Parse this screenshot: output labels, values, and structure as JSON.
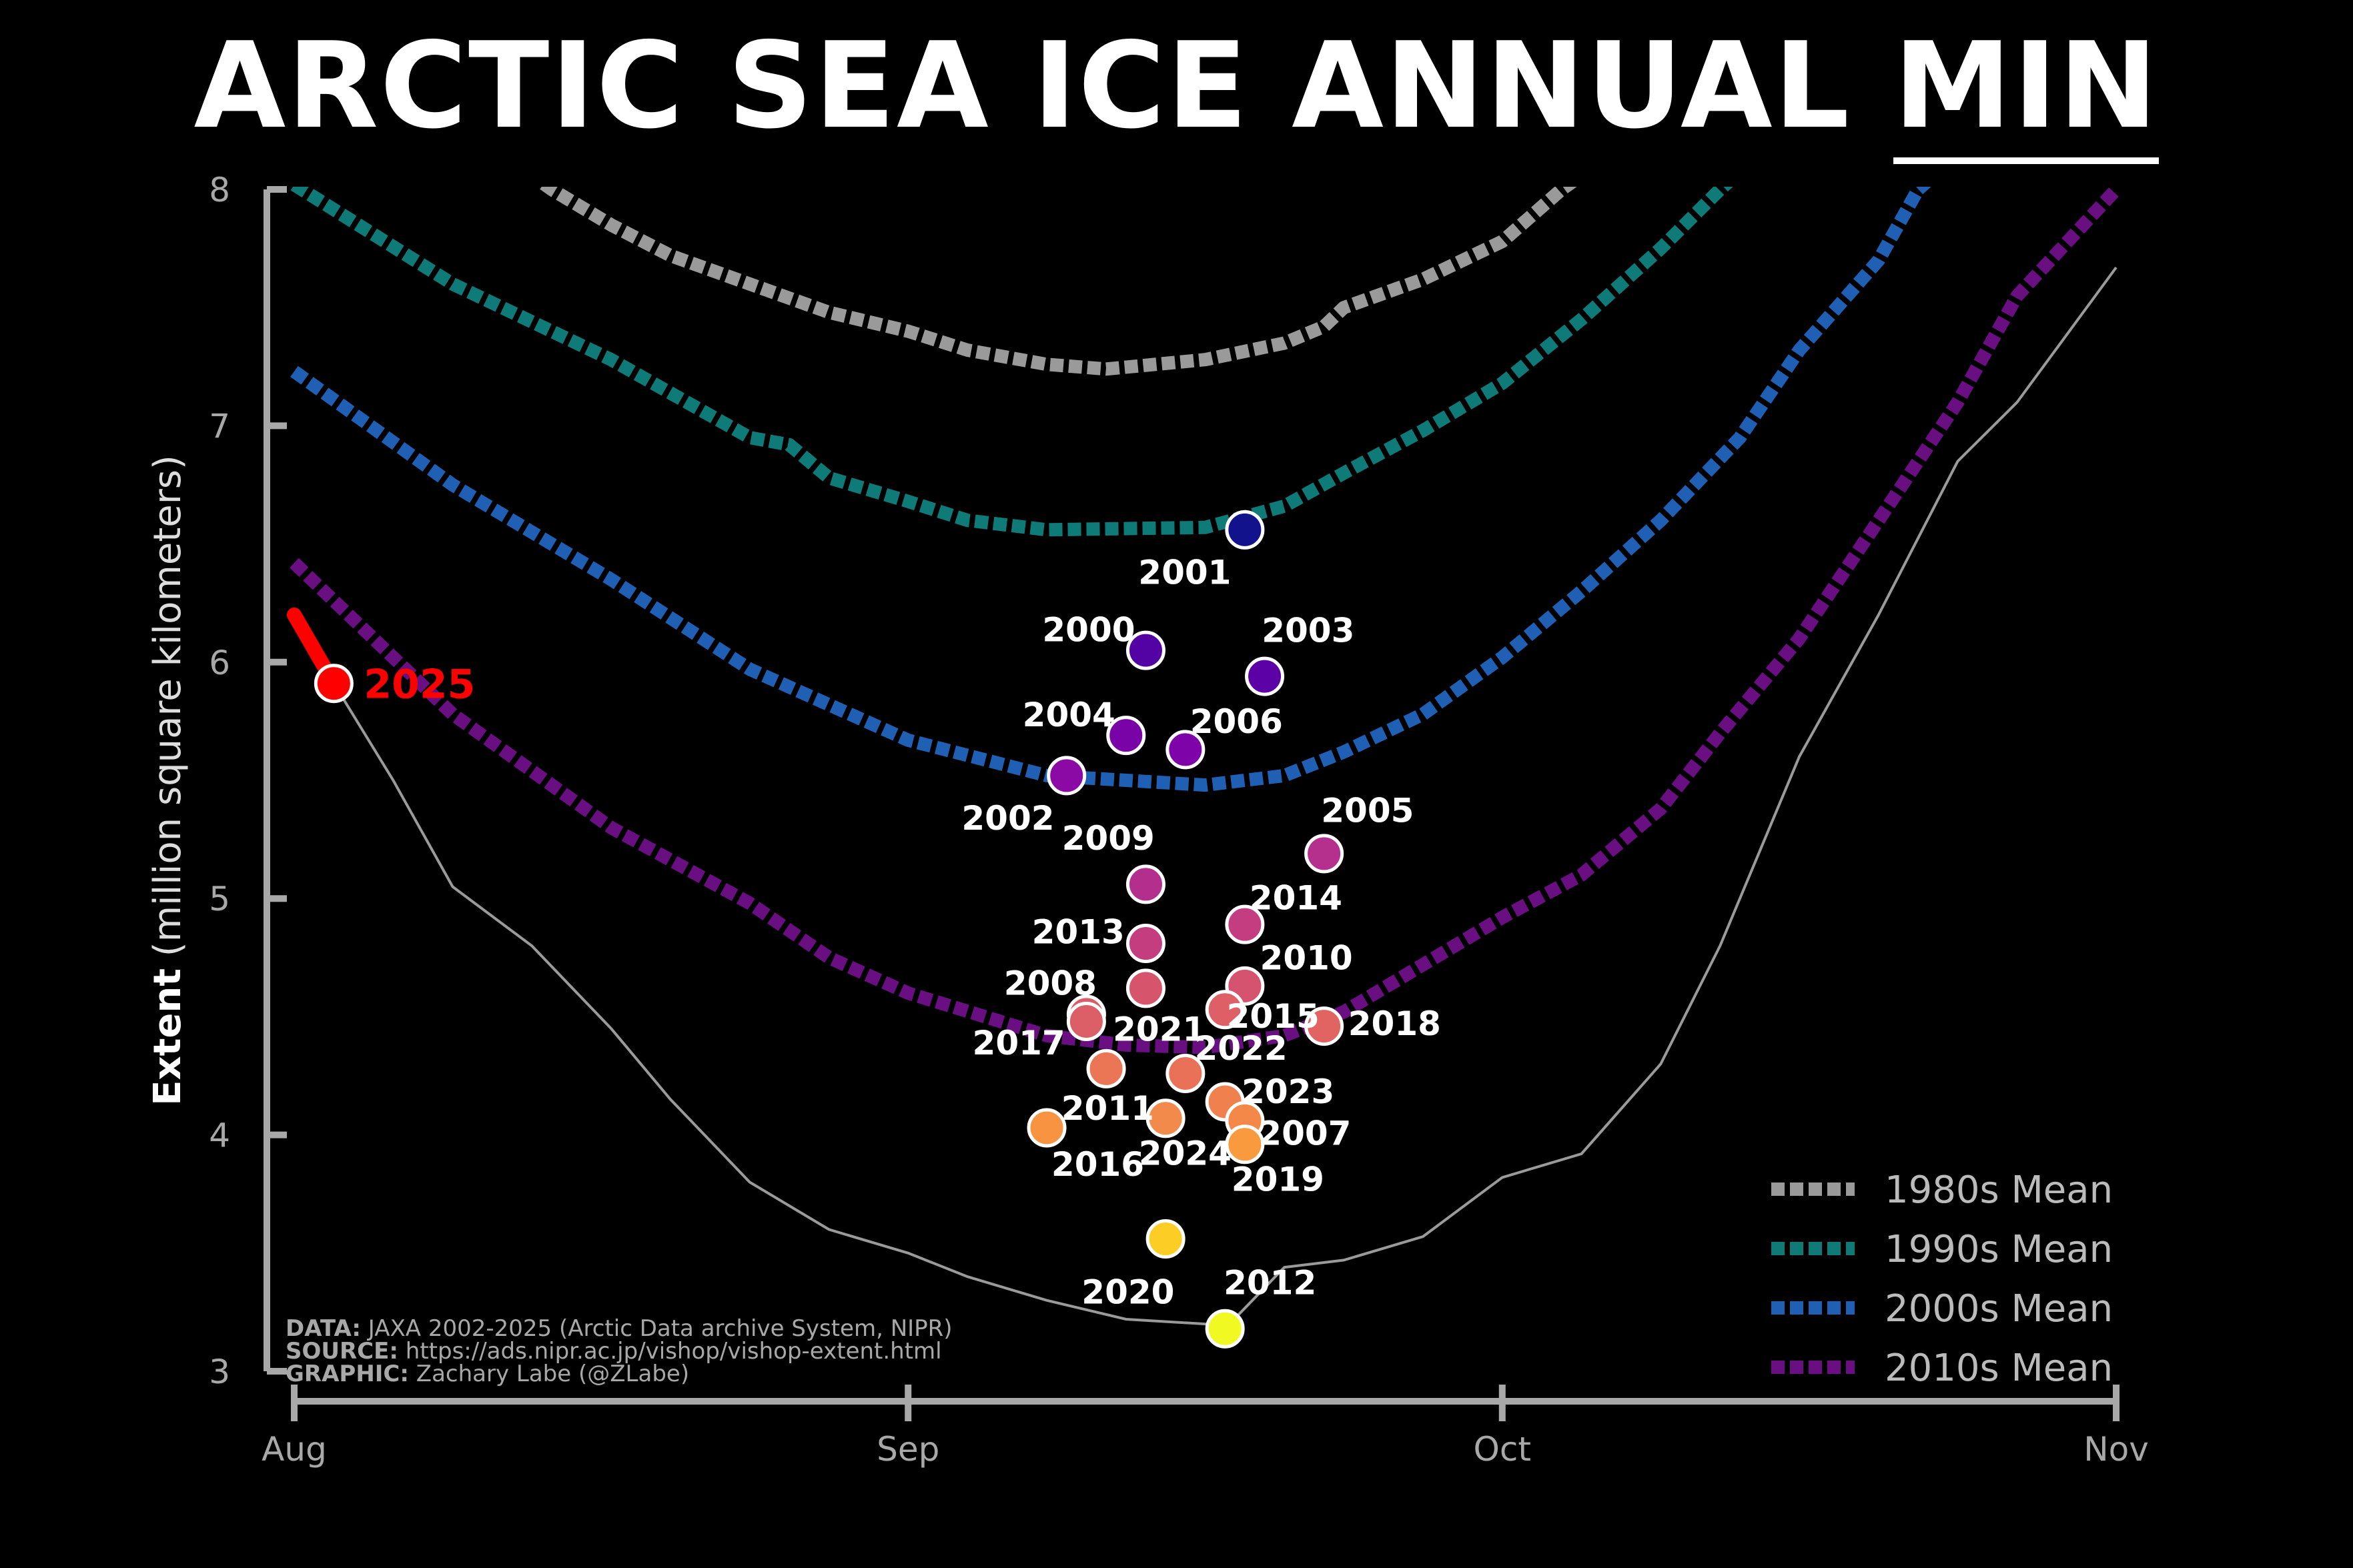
{
  "chart_data": {
    "type": "scatter",
    "title_main": "ARCTIC SEA ICE ANNUAL",
    "title_underlined": "MIN",
    "ylabel_bold": "Extent",
    "ylabel_rest": "(million square kilometers)",
    "ylim": [
      3,
      8
    ],
    "yticks": [
      "3",
      "4",
      "5",
      "6",
      "7",
      "8"
    ],
    "xlim": [
      "2025-08-01",
      "2025-11-01"
    ],
    "xticks": [
      {
        "date": "2025-08-01",
        "label": "Aug"
      },
      {
        "date": "2025-09-01",
        "label": "Sep"
      },
      {
        "date": "2025-10-01",
        "label": "Oct"
      },
      {
        "date": "2025-11-01",
        "label": "Nov"
      }
    ],
    "grid": false,
    "legend_position": "bottom-right",
    "mean_series": [
      {
        "name": "1980s Mean",
        "color": "#9a9a9a",
        "x": [
          "2025-08-09",
          "2025-08-14",
          "2025-08-17",
          "2025-08-20",
          "2025-08-24",
          "2025-08-28",
          "2025-09-01",
          "2025-09-04",
          "2025-09-08",
          "2025-09-11",
          "2025-09-16",
          "2025-09-20",
          "2025-09-22",
          "2025-09-23",
          "2025-09-27",
          "2025-10-01",
          "2025-10-04",
          "2025-10-09"
        ],
        "y": [
          8.3,
          8.0,
          7.85,
          7.72,
          7.6,
          7.48,
          7.4,
          7.32,
          7.26,
          7.24,
          7.28,
          7.35,
          7.42,
          7.5,
          7.62,
          7.78,
          8.0,
          8.3
        ]
      },
      {
        "name": "1990s Mean",
        "color": "#0f7b78",
        "x": [
          "2025-08-01",
          "2025-08-09",
          "2025-08-17",
          "2025-08-24",
          "2025-08-26",
          "2025-08-28",
          "2025-09-01",
          "2025-09-04",
          "2025-09-08",
          "2025-09-16",
          "2025-09-20",
          "2025-09-23",
          "2025-09-27",
          "2025-10-01",
          "2025-10-05",
          "2025-10-09",
          "2025-10-12",
          "2025-10-16"
        ],
        "y": [
          8.02,
          7.6,
          7.28,
          6.95,
          6.92,
          6.78,
          6.68,
          6.6,
          6.56,
          6.57,
          6.66,
          6.8,
          6.98,
          7.18,
          7.45,
          7.75,
          8.0,
          8.3
        ]
      },
      {
        "name": "2000s Mean",
        "color": "#1f5fb4",
        "x": [
          "2025-08-01",
          "2025-08-09",
          "2025-08-17",
          "2025-08-24",
          "2025-09-01",
          "2025-09-08",
          "2025-09-16",
          "2025-09-20",
          "2025-09-23",
          "2025-09-27",
          "2025-10-01",
          "2025-10-05",
          "2025-10-09",
          "2025-10-13",
          "2025-10-16",
          "2025-10-20",
          "2025-10-22",
          "2025-10-26"
        ],
        "y": [
          7.23,
          6.75,
          6.35,
          5.97,
          5.67,
          5.52,
          5.48,
          5.52,
          5.62,
          5.78,
          6.02,
          6.3,
          6.6,
          6.95,
          7.32,
          7.7,
          8.0,
          8.3
        ]
      },
      {
        "name": "2010s Mean",
        "color": "#6a0f82",
        "x": [
          "2025-08-01",
          "2025-08-05",
          "2025-08-09",
          "2025-08-17",
          "2025-08-24",
          "2025-08-28",
          "2025-09-01",
          "2025-09-08",
          "2025-09-12",
          "2025-09-16",
          "2025-09-20",
          "2025-09-23",
          "2025-09-27",
          "2025-10-01",
          "2025-10-05",
          "2025-10-09",
          "2025-10-12",
          "2025-10-16",
          "2025-10-20",
          "2025-10-24",
          "2025-10-27",
          "2025-11-01"
        ],
        "y": [
          6.42,
          6.1,
          5.78,
          5.3,
          4.98,
          4.75,
          4.6,
          4.42,
          4.38,
          4.37,
          4.42,
          4.52,
          4.72,
          4.92,
          5.1,
          5.38,
          5.7,
          6.1,
          6.6,
          7.1,
          7.55,
          8.0
        ]
      }
    ],
    "thin_line": {
      "color": "#9a9a9a",
      "x": [
        "2025-08-03",
        "2025-08-06",
        "2025-08-09",
        "2025-08-13",
        "2025-08-17",
        "2025-08-20",
        "2025-08-24",
        "2025-08-28",
        "2025-09-01",
        "2025-09-04",
        "2025-09-08",
        "2025-09-12",
        "2025-09-16",
        "2025-09-17",
        "2025-09-20",
        "2025-09-23",
        "2025-09-27",
        "2025-10-01",
        "2025-10-05",
        "2025-10-09",
        "2025-10-12",
        "2025-10-16",
        "2025-10-20",
        "2025-10-24",
        "2025-10-27",
        "2025-11-01"
      ],
      "y": [
        5.91,
        5.5,
        5.05,
        4.8,
        4.45,
        4.15,
        3.8,
        3.6,
        3.5,
        3.4,
        3.3,
        3.22,
        3.2,
        3.18,
        3.44,
        3.47,
        3.57,
        3.82,
        3.92,
        4.3,
        4.8,
        5.6,
        6.2,
        6.85,
        7.1,
        7.67
      ]
    },
    "current_line": {
      "color": "#ff0000",
      "x": [
        "2025-08-01",
        "2025-08-03"
      ],
      "y": [
        6.2,
        5.91
      ]
    },
    "points": [
      {
        "label": "2001",
        "date": "2025-09-18",
        "value": 6.56,
        "color": "#12128c"
      },
      {
        "label": "2000",
        "date": "2025-09-13",
        "value": 6.05,
        "color": "#5302a3"
      },
      {
        "label": "2003",
        "date": "2025-09-19",
        "value": 5.94,
        "color": "#5b01a5"
      },
      {
        "label": "2004",
        "date": "2025-09-12",
        "value": 5.69,
        "color": "#7a03a8"
      },
      {
        "label": "2006",
        "date": "2025-09-15",
        "value": 5.63,
        "color": "#7e03a8"
      },
      {
        "label": "2002",
        "date": "2025-09-09",
        "value": 5.52,
        "color": "#8b0aa5"
      },
      {
        "label": "2009",
        "date": "2025-09-13",
        "value": 5.06,
        "color": "#b42e8d"
      },
      {
        "label": "2005",
        "date": "2025-09-22",
        "value": 5.19,
        "color": "#b52f8c"
      },
      {
        "label": "2014",
        "date": "2025-09-18",
        "value": 4.89,
        "color": "#c33d80"
      },
      {
        "label": "2013",
        "date": "2025-09-13",
        "value": 4.81,
        "color": "#c43e7f"
      },
      {
        "label": "2010",
        "date": "2025-09-18",
        "value": 4.63,
        "color": "#d5536f"
      },
      {
        "label": "2008",
        "date": "2025-09-10",
        "value": 4.51,
        "color": "#db5c68"
      },
      {
        "label": "2017",
        "date": "2025-09-10",
        "value": 4.48,
        "color": "#dc5e66"
      },
      {
        "label": "2021",
        "date": "2025-09-13",
        "value": 4.62,
        "color": "#d6556d"
      },
      {
        "label": "2015",
        "date": "2025-09-17",
        "value": 4.53,
        "color": "#de5f65"
      },
      {
        "label": "2018",
        "date": "2025-09-22",
        "value": 4.46,
        "color": "#e16462"
      },
      {
        "label": "2022",
        "date": "2025-09-15",
        "value": 4.26,
        "color": "#e97158"
      },
      {
        "label": "2011",
        "date": "2025-09-11",
        "value": 4.28,
        "color": "#eb7655"
      },
      {
        "label": "2023",
        "date": "2025-09-17",
        "value": 4.14,
        "color": "#f0804e"
      },
      {
        "label": "2007",
        "date": "2025-09-18",
        "value": 4.06,
        "color": "#f48849"
      },
      {
        "label": "2019",
        "date": "2025-09-18",
        "value": 3.96,
        "color": "#f99a3e"
      },
      {
        "label": "2024",
        "date": "2025-09-14",
        "value": 4.07,
        "color": "#f28a4b"
      },
      {
        "label": "2016",
        "date": "2025-09-08",
        "value": 4.03,
        "color": "#f89441"
      },
      {
        "label": "2020",
        "date": "2025-09-14",
        "value": 3.56,
        "color": "#fccd25"
      },
      {
        "label": "2012",
        "date": "2025-09-17",
        "value": 3.18,
        "color": "#f0f921"
      },
      {
        "label": "2025",
        "date": "2025-08-03",
        "value": 5.91,
        "color": "#ff0000"
      }
    ]
  },
  "credits": [
    {
      "key": "DATA:",
      "text": "JAXA 2002-2025 (Arctic Data archive System, NIPR)"
    },
    {
      "key": "SOURCE:",
      "text": "https://ads.nipr.ac.jp/vishop/vishop-extent.html"
    },
    {
      "key": "GRAPHIC:",
      "text": "Zachary Labe (@ZLabe)"
    }
  ]
}
